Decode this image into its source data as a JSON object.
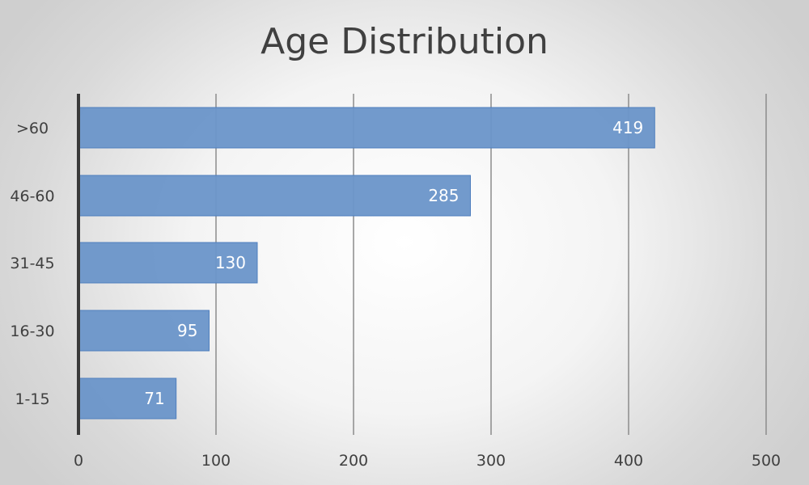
{
  "chart_data": {
    "type": "bar",
    "orientation": "horizontal",
    "title": "Age Distribution",
    "categories": [
      "1-15",
      "16-30",
      "31-45",
      "46-60",
      ">60"
    ],
    "values": [
      71,
      95,
      130,
      285,
      419
    ],
    "x_ticks": [
      0,
      100,
      200,
      300,
      400,
      500
    ],
    "xlim": [
      0,
      500
    ],
    "xlabel": "",
    "ylabel": "",
    "grid": "vertical",
    "legend": "none",
    "data_labels": "inside-end",
    "colors": {
      "bar": "#6a95c9",
      "bar_border": "#4f7fbe",
      "gridline": "#8c8c8c",
      "axis": "#3a3a3a",
      "label_text": "#ffffff"
    }
  }
}
